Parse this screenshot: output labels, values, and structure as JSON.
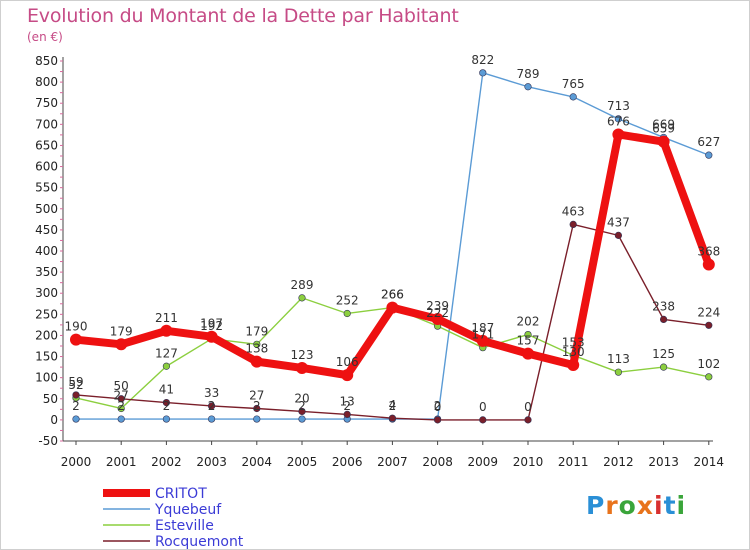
{
  "title": "Evolution du Montant de la Dette par Habitant",
  "subtitle": "(en €)",
  "logo": {
    "text": "Proxiti",
    "colors": [
      "#2a8fd6",
      "#e8731c",
      "#3aa53a",
      "#e8731c",
      "#d83030",
      "#2a8fd6",
      "#3aa53a"
    ]
  },
  "chart_data": {
    "type": "line",
    "title": "Evolution du Montant de la Dette par Habitant",
    "ylabel": "(en €)",
    "x": [
      "2000",
      "2001",
      "2002",
      "2003",
      "2004",
      "2005",
      "2006",
      "2007",
      "2008",
      "2009",
      "2010",
      "2011",
      "2012",
      "2013",
      "2014"
    ],
    "ylim": [
      -50,
      850
    ],
    "yticks": [
      -50,
      0,
      50,
      100,
      150,
      200,
      250,
      300,
      350,
      400,
      450,
      500,
      550,
      600,
      650,
      700,
      750,
      800,
      850
    ],
    "grid": false,
    "legend": "bottom-left",
    "series": [
      {
        "name": "CRITOT",
        "color": "#ee1111",
        "values": [
          190,
          179,
          211,
          197,
          138,
          123,
          106,
          266,
          239,
          187,
          157,
          130,
          676,
          659,
          368
        ],
        "labels": [
          "190",
          "179",
          "211",
          "197",
          "138",
          "123",
          "106",
          "266",
          "239",
          "187",
          "157",
          "130",
          "676",
          "659",
          "368"
        ]
      },
      {
        "name": "Yquebeuf",
        "color": "#5b9bd5",
        "values": [
          2,
          2,
          2,
          2,
          2,
          2,
          2,
          2,
          2,
          822,
          789,
          765,
          713,
          669,
          627
        ],
        "labels": [
          "2",
          "2",
          "2",
          "2",
          "2",
          "2",
          "2",
          "2",
          "2",
          "822",
          "789",
          "765",
          "713",
          "669",
          "627"
        ]
      },
      {
        "name": "Esteville",
        "color": "#8ccf3f",
        "values": [
          52,
          27,
          127,
          192,
          179,
          289,
          252,
          266,
          222,
          171,
          202,
          153,
          113,
          125,
          102
        ],
        "labels": [
          "52",
          "27",
          "127",
          "192",
          "179",
          "289",
          "252",
          "266",
          "222",
          "171",
          "202",
          "153",
          "113",
          "125",
          "102"
        ]
      },
      {
        "name": "Rocquemont",
        "color": "#7a1f2a",
        "values": [
          59,
          50,
          41,
          33,
          27,
          20,
          13,
          4,
          0,
          0,
          0,
          463,
          437,
          238,
          224
        ],
        "labels": [
          "59",
          "50",
          "41",
          "33",
          "27",
          "20",
          "13",
          "4",
          "0",
          "0",
          "0",
          "463",
          "437",
          "238",
          "224"
        ]
      }
    ]
  }
}
